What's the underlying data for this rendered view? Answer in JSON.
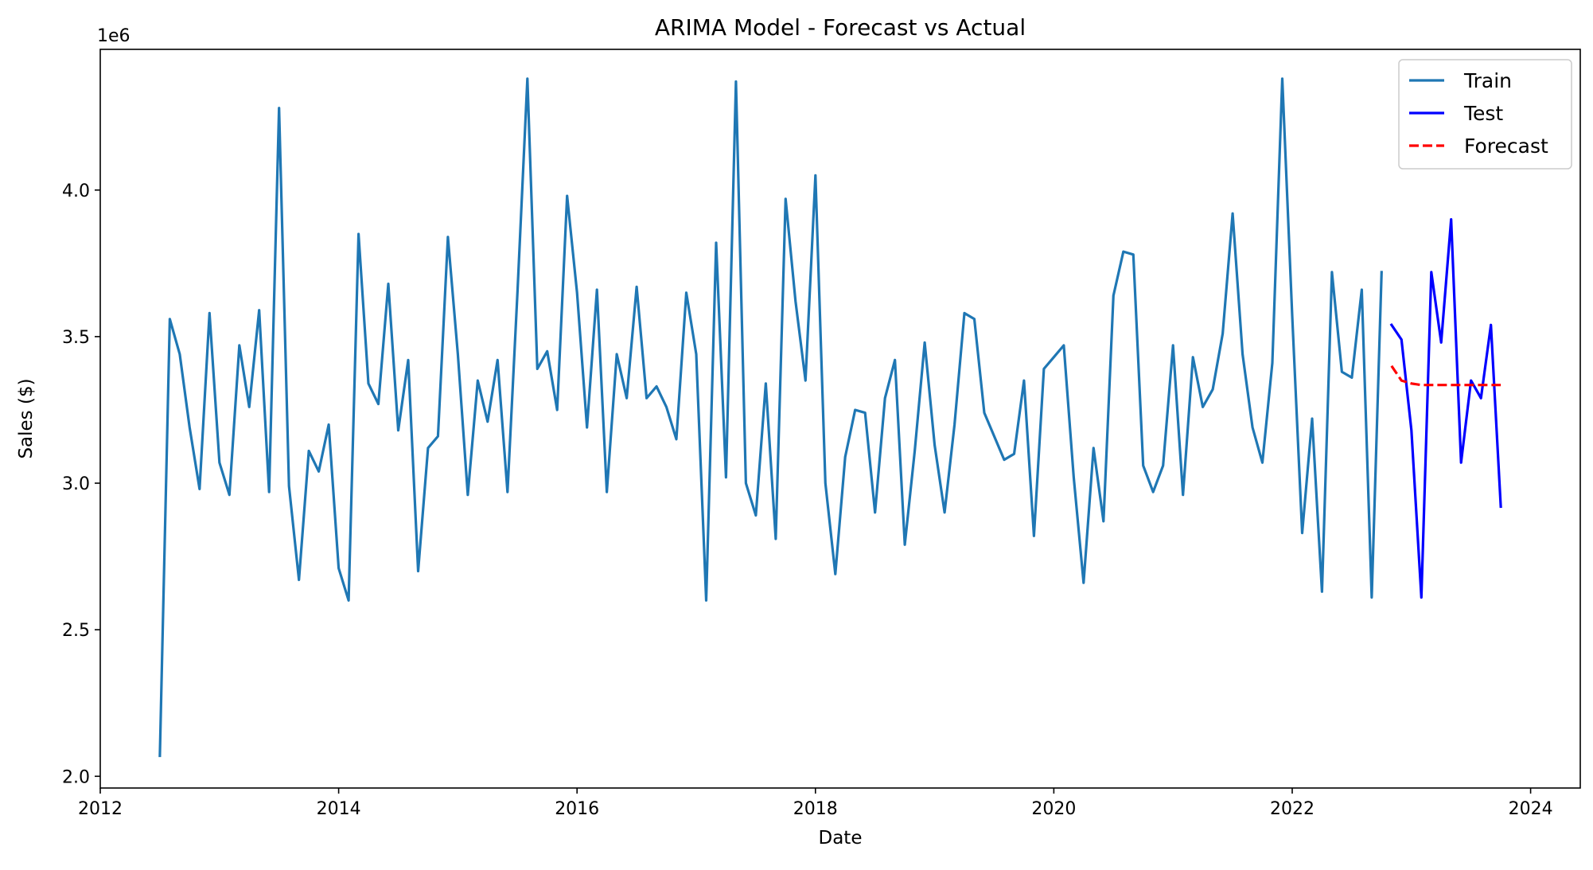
{
  "chart_data": {
    "type": "line",
    "title": "ARIMA Model - Forecast vs Actual",
    "xlabel": "Date",
    "ylabel": "Sales ($)",
    "y_offset_text": "1e6",
    "xlim": [
      "2012-01-01",
      "2024-06-01"
    ],
    "ylim": [
      1.96,
      4.48
    ],
    "x_ticks": [
      "2012",
      "2014",
      "2016",
      "2018",
      "2020",
      "2022",
      "2024"
    ],
    "y_ticks": [
      "2.0",
      "2.5",
      "3.0",
      "3.5",
      "4.0"
    ],
    "grid": false,
    "legend_position": "top-right",
    "series": [
      {
        "name": "Train",
        "color": "#1f77b4",
        "style": "solid",
        "x": [
          "2012-07",
          "2012-08",
          "2012-09",
          "2012-10",
          "2012-11",
          "2012-12",
          "2013-01",
          "2013-02",
          "2013-03",
          "2013-04",
          "2013-05",
          "2013-06",
          "2013-07",
          "2013-08",
          "2013-09",
          "2013-10",
          "2013-11",
          "2013-12",
          "2014-01",
          "2014-02",
          "2014-03",
          "2014-04",
          "2014-05",
          "2014-06",
          "2014-07",
          "2014-08",
          "2014-09",
          "2014-10",
          "2014-11",
          "2014-12",
          "2015-01",
          "2015-02",
          "2015-03",
          "2015-04",
          "2015-05",
          "2015-06",
          "2015-07",
          "2015-08",
          "2015-09",
          "2015-10",
          "2015-11",
          "2015-12",
          "2016-01",
          "2016-02",
          "2016-03",
          "2016-04",
          "2016-05",
          "2016-06",
          "2016-07",
          "2016-08",
          "2016-09",
          "2016-10",
          "2016-11",
          "2016-12",
          "2017-01",
          "2017-02",
          "2017-03",
          "2017-04",
          "2017-05",
          "2017-06",
          "2017-07",
          "2017-08",
          "2017-09",
          "2017-10",
          "2017-11",
          "2017-12",
          "2018-01",
          "2018-02",
          "2018-03",
          "2018-04",
          "2018-05",
          "2018-06",
          "2018-07",
          "2018-08",
          "2018-09",
          "2018-10",
          "2018-11",
          "2018-12",
          "2019-01",
          "2019-02",
          "2019-03",
          "2019-04",
          "2019-05",
          "2019-06",
          "2019-07",
          "2019-08",
          "2019-09",
          "2019-10",
          "2019-11",
          "2019-12",
          "2020-01",
          "2020-02",
          "2020-03",
          "2020-04",
          "2020-05",
          "2020-06",
          "2020-07",
          "2020-08",
          "2020-09",
          "2020-10",
          "2020-11",
          "2020-12",
          "2021-01",
          "2021-02",
          "2021-03",
          "2021-04",
          "2021-05",
          "2021-06",
          "2021-07",
          "2021-08",
          "2021-09",
          "2021-10",
          "2021-11",
          "2021-12",
          "2022-01",
          "2022-02",
          "2022-03",
          "2022-04",
          "2022-05",
          "2022-06",
          "2022-07",
          "2022-08",
          "2022-09",
          "2022-10"
        ],
        "values": [
          2.07,
          3.56,
          3.44,
          3.19,
          2.98,
          3.58,
          3.07,
          2.96,
          3.47,
          3.26,
          3.59,
          2.97,
          4.28,
          2.99,
          2.67,
          3.11,
          3.04,
          3.2,
          2.71,
          2.6,
          3.85,
          3.34,
          3.27,
          3.68,
          3.18,
          3.42,
          2.7,
          3.12,
          3.16,
          3.84,
          3.44,
          2.96,
          3.35,
          3.21,
          3.42,
          2.97,
          3.65,
          4.38,
          3.39,
          3.45,
          3.25,
          3.98,
          3.65,
          3.19,
          3.66,
          2.97,
          3.44,
          3.29,
          3.67,
          3.29,
          3.33,
          3.26,
          3.15,
          3.65,
          3.44,
          2.6,
          3.82,
          3.02,
          4.37,
          3.0,
          2.89,
          3.34,
          2.81,
          3.97,
          3.62,
          3.35,
          4.05,
          3.0,
          2.69,
          3.09,
          3.25,
          3.24,
          2.9,
          3.29,
          3.42,
          2.79,
          3.11,
          3.48,
          3.13,
          2.9,
          3.2,
          3.58,
          3.56,
          3.24,
          3.16,
          3.08,
          3.1,
          3.35,
          2.82,
          3.39,
          3.43,
          3.47,
          3.02,
          2.66,
          3.12,
          2.87,
          3.64,
          3.79,
          3.78,
          3.06,
          2.97,
          3.06,
          3.47,
          2.96,
          3.43,
          3.26,
          3.32,
          3.51,
          3.92,
          3.44,
          3.19,
          3.07,
          3.41,
          4.38,
          3.57,
          2.83,
          3.22,
          2.63,
          3.72,
          3.38,
          3.36,
          3.66,
          2.61,
          3.72
        ]
      },
      {
        "name": "Test",
        "color": "#0000ff",
        "style": "solid",
        "x": [
          "2022-11",
          "2022-12",
          "2023-01",
          "2023-02",
          "2023-03",
          "2023-04",
          "2023-05",
          "2023-06",
          "2023-07",
          "2023-08",
          "2023-09",
          "2023-10"
        ],
        "values": [
          3.54,
          3.49,
          3.18,
          2.61,
          3.72,
          3.48,
          3.9,
          3.07,
          3.35,
          3.29,
          3.54,
          2.92
        ]
      },
      {
        "name": "Forecast",
        "color": "#ff0000",
        "style": "dashed",
        "x": [
          "2022-11",
          "2022-12",
          "2023-01",
          "2023-02",
          "2023-03",
          "2023-04",
          "2023-05",
          "2023-06",
          "2023-07",
          "2023-08",
          "2023-09",
          "2023-10"
        ],
        "values": [
          3.4,
          3.35,
          3.34,
          3.335,
          3.335,
          3.335,
          3.335,
          3.335,
          3.335,
          3.335,
          3.335,
          3.335
        ]
      }
    ]
  }
}
